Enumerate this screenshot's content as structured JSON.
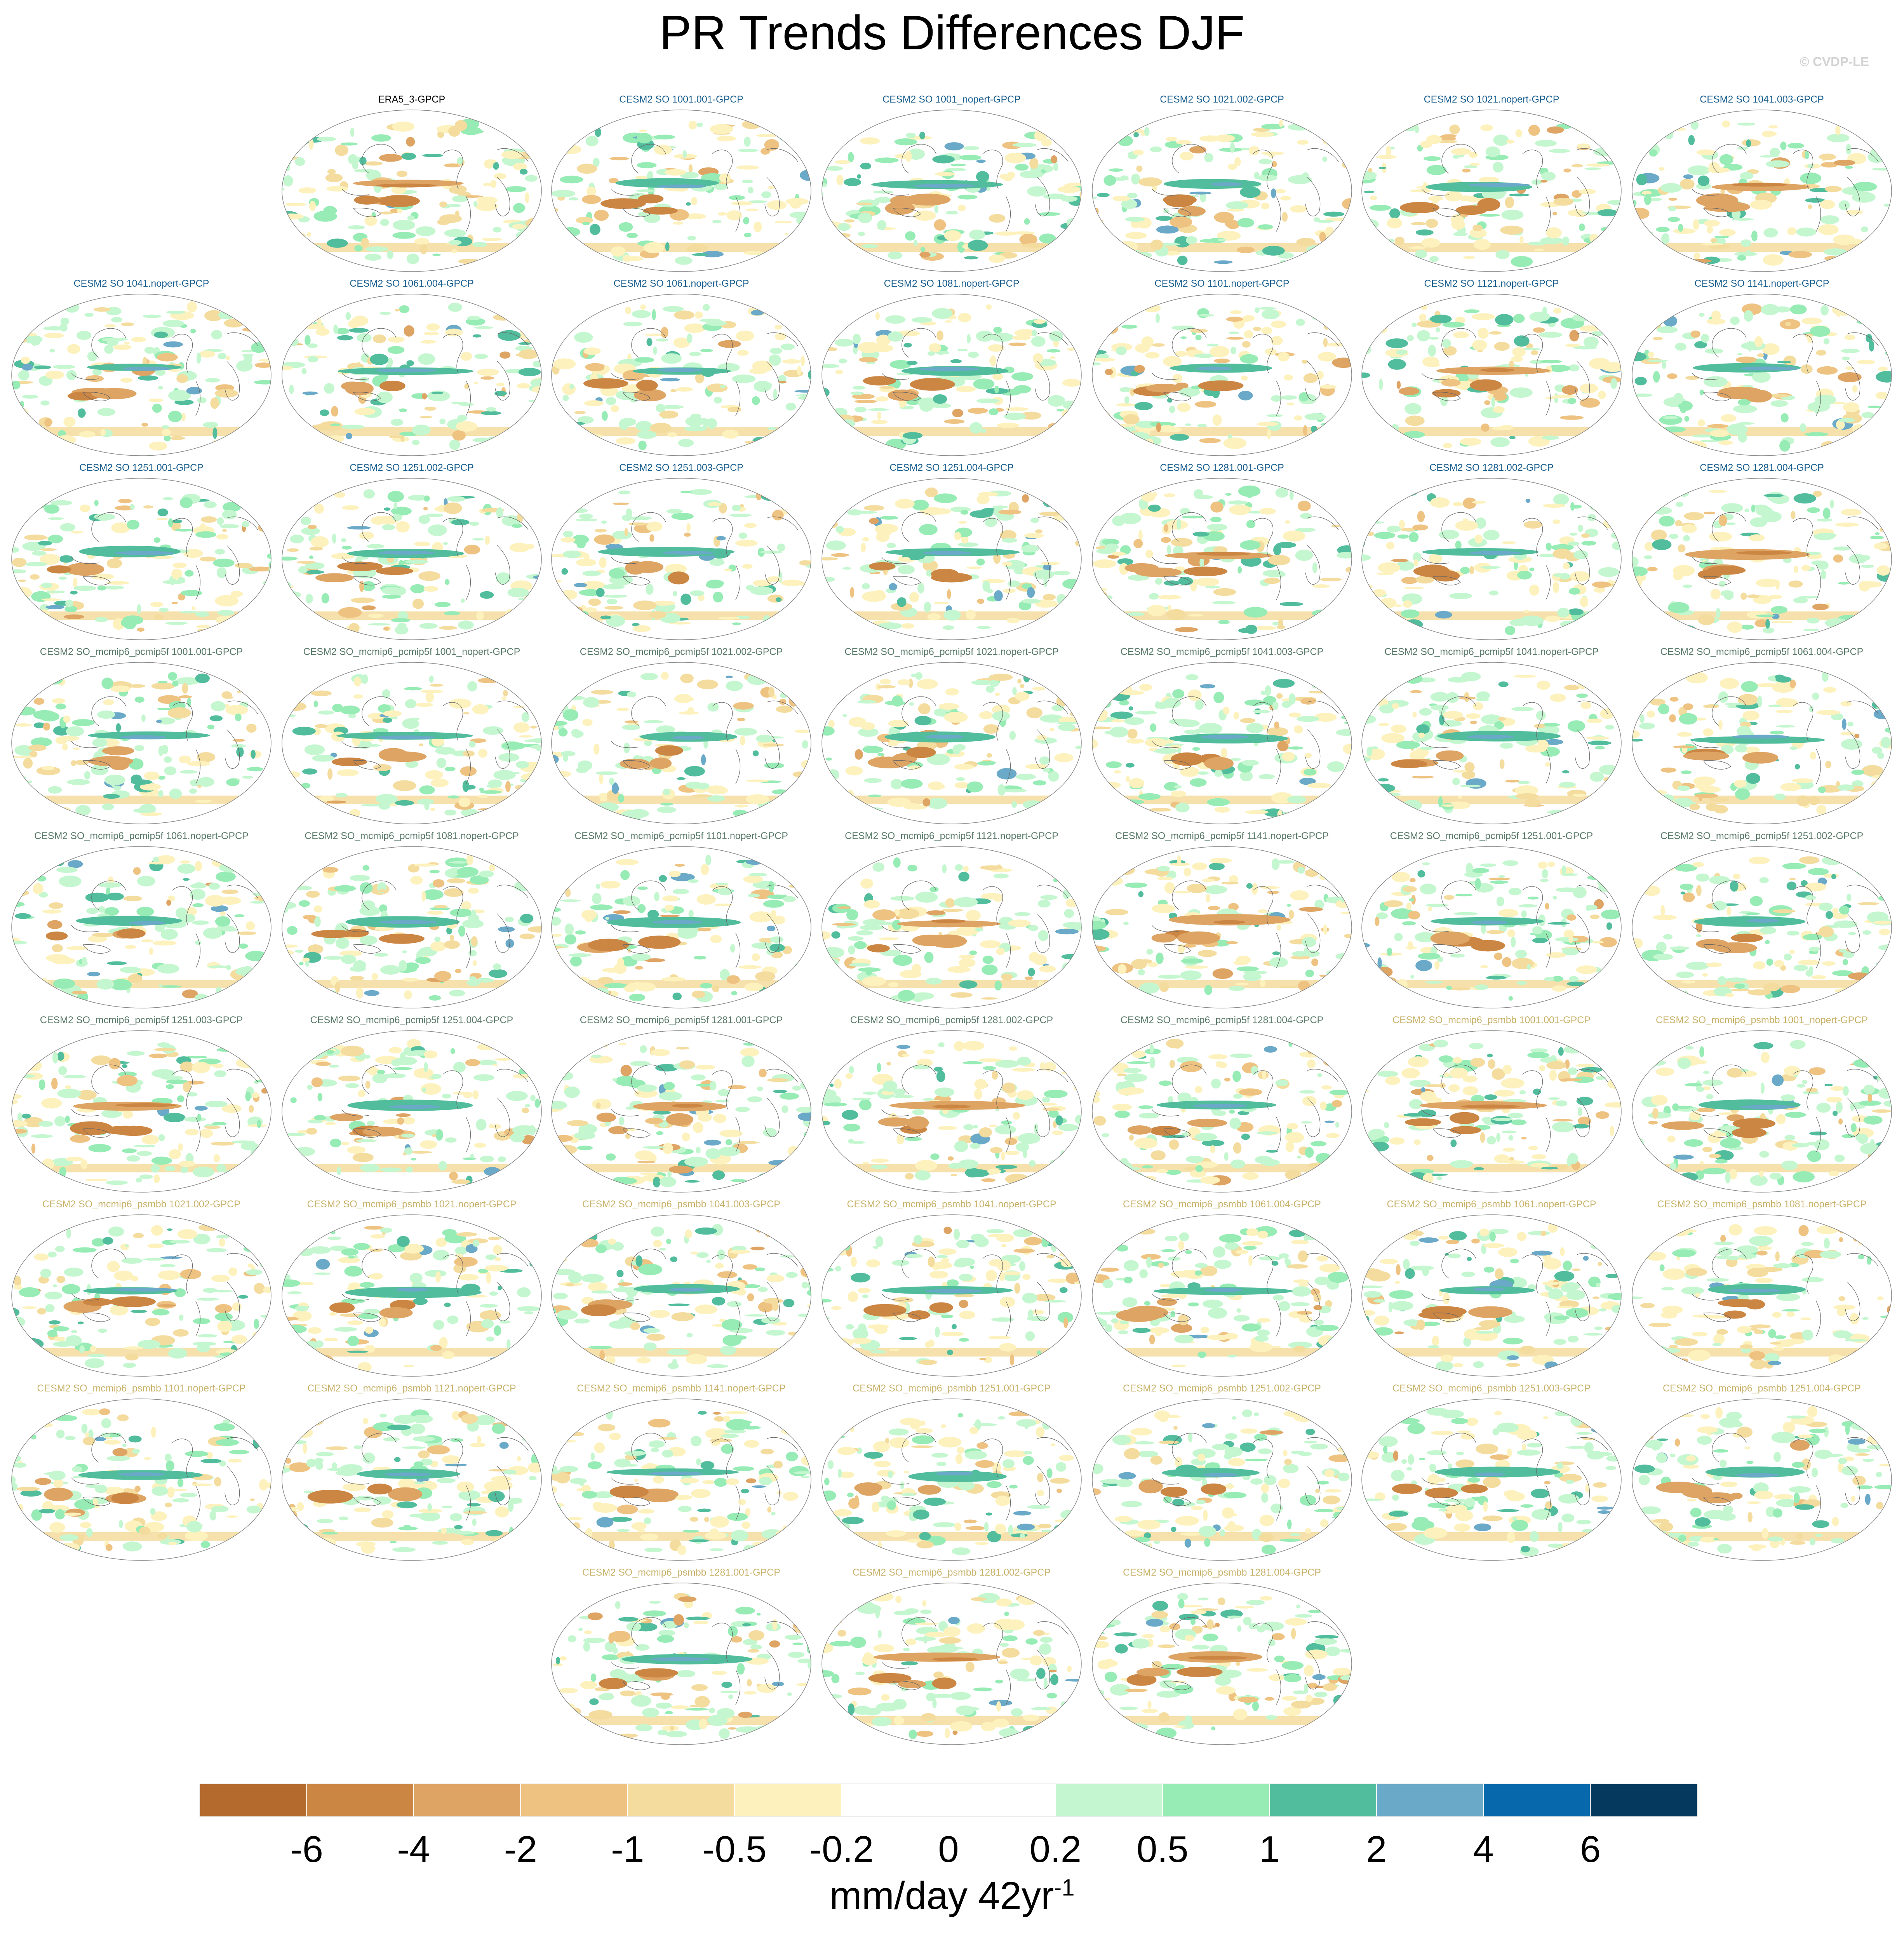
{
  "title": "PR Trends Differences DJF",
  "copyright": "© CVDP-LE",
  "panel_colors": {
    "obs": "#000000",
    "SO": "#1a5f8f",
    "pcmip5f": "#5a7a6a",
    "psmbb": "#c8b26a"
  },
  "panels": [
    {
      "label": "ERA5_3-GPCP",
      "group": "obs"
    },
    {
      "label": "CESM2 SO 1001.001-GPCP",
      "group": "SO"
    },
    {
      "label": "CESM2 SO 1001_nopert-GPCP",
      "group": "SO"
    },
    {
      "label": "CESM2 SO 1021.002-GPCP",
      "group": "SO"
    },
    {
      "label": "CESM2 SO 1021.nopert-GPCP",
      "group": "SO"
    },
    {
      "label": "CESM2 SO 1041.003-GPCP",
      "group": "SO"
    },
    {
      "label": "CESM2 SO 1041.nopert-GPCP",
      "group": "SO"
    },
    {
      "label": "CESM2 SO 1061.004-GPCP",
      "group": "SO"
    },
    {
      "label": "CESM2 SO 1061.nopert-GPCP",
      "group": "SO"
    },
    {
      "label": "CESM2 SO 1081.nopert-GPCP",
      "group": "SO"
    },
    {
      "label": "CESM2 SO 1101.nopert-GPCP",
      "group": "SO"
    },
    {
      "label": "CESM2 SO 1121.nopert-GPCP",
      "group": "SO"
    },
    {
      "label": "CESM2 SO 1141.nopert-GPCP",
      "group": "SO"
    },
    {
      "label": "CESM2 SO 1251.001-GPCP",
      "group": "SO"
    },
    {
      "label": "CESM2 SO 1251.002-GPCP",
      "group": "SO"
    },
    {
      "label": "CESM2 SO 1251.003-GPCP",
      "group": "SO"
    },
    {
      "label": "CESM2 SO 1251.004-GPCP",
      "group": "SO"
    },
    {
      "label": "CESM2 SO 1281.001-GPCP",
      "group": "SO"
    },
    {
      "label": "CESM2 SO 1281.002-GPCP",
      "group": "SO"
    },
    {
      "label": "CESM2 SO 1281.004-GPCP",
      "group": "SO"
    },
    {
      "label": "CESM2 SO_mcmip6_pcmip5f 1001.001-GPCP",
      "group": "pcmip5f"
    },
    {
      "label": "CESM2 SO_mcmip6_pcmip5f 1001_nopert-GPCP",
      "group": "pcmip5f"
    },
    {
      "label": "CESM2 SO_mcmip6_pcmip5f 1021.002-GPCP",
      "group": "pcmip5f"
    },
    {
      "label": "CESM2 SO_mcmip6_pcmip5f 1021.nopert-GPCP",
      "group": "pcmip5f"
    },
    {
      "label": "CESM2 SO_mcmip6_pcmip5f 1041.003-GPCP",
      "group": "pcmip5f"
    },
    {
      "label": "CESM2 SO_mcmip6_pcmip5f 1041.nopert-GPCP",
      "group": "pcmip5f"
    },
    {
      "label": "CESM2 SO_mcmip6_pcmip5f 1061.004-GPCP",
      "group": "pcmip5f"
    },
    {
      "label": "CESM2 SO_mcmip6_pcmip5f 1061.nopert-GPCP",
      "group": "pcmip5f"
    },
    {
      "label": "CESM2 SO_mcmip6_pcmip5f 1081.nopert-GPCP",
      "group": "pcmip5f"
    },
    {
      "label": "CESM2 SO_mcmip6_pcmip5f 1101.nopert-GPCP",
      "group": "pcmip5f"
    },
    {
      "label": "CESM2 SO_mcmip6_pcmip5f 1121.nopert-GPCP",
      "group": "pcmip5f"
    },
    {
      "label": "CESM2 SO_mcmip6_pcmip5f 1141.nopert-GPCP",
      "group": "pcmip5f"
    },
    {
      "label": "CESM2 SO_mcmip6_pcmip5f 1251.001-GPCP",
      "group": "pcmip5f"
    },
    {
      "label": "CESM2 SO_mcmip6_pcmip5f 1251.002-GPCP",
      "group": "pcmip5f"
    },
    {
      "label": "CESM2 SO_mcmip6_pcmip5f 1251.003-GPCP",
      "group": "pcmip5f"
    },
    {
      "label": "CESM2 SO_mcmip6_pcmip5f 1251.004-GPCP",
      "group": "pcmip5f"
    },
    {
      "label": "CESM2 SO_mcmip6_pcmip5f 1281.001-GPCP",
      "group": "pcmip5f"
    },
    {
      "label": "CESM2 SO_mcmip6_pcmip5f 1281.002-GPCP",
      "group": "pcmip5f"
    },
    {
      "label": "CESM2 SO_mcmip6_pcmip5f 1281.004-GPCP",
      "group": "pcmip5f"
    },
    {
      "label": "CESM2 SO_mcmip6_psmbb 1001.001-GPCP",
      "group": "psmbb"
    },
    {
      "label": "CESM2 SO_mcmip6_psmbb 1001_nopert-GPCP",
      "group": "psmbb"
    },
    {
      "label": "CESM2 SO_mcmip6_psmbb 1021.002-GPCP",
      "group": "psmbb"
    },
    {
      "label": "CESM2 SO_mcmip6_psmbb 1021.nopert-GPCP",
      "group": "psmbb"
    },
    {
      "label": "CESM2 SO_mcmip6_psmbb 1041.003-GPCP",
      "group": "psmbb"
    },
    {
      "label": "CESM2 SO_mcmip6_psmbb 1041.nopert-GPCP",
      "group": "psmbb"
    },
    {
      "label": "CESM2 SO_mcmip6_psmbb 1061.004-GPCP",
      "group": "psmbb"
    },
    {
      "label": "CESM2 SO_mcmip6_psmbb 1061.nopert-GPCP",
      "group": "psmbb"
    },
    {
      "label": "CESM2 SO_mcmip6_psmbb 1081.nopert-GPCP",
      "group": "psmbb"
    },
    {
      "label": "CESM2 SO_mcmip6_psmbb 1101.nopert-GPCP",
      "group": "psmbb"
    },
    {
      "label": "CESM2 SO_mcmip6_psmbb 1121.nopert-GPCP",
      "group": "psmbb"
    },
    {
      "label": "CESM2 SO_mcmip6_psmbb 1141.nopert-GPCP",
      "group": "psmbb"
    },
    {
      "label": "CESM2 SO_mcmip6_psmbb 1251.001-GPCP",
      "group": "psmbb"
    },
    {
      "label": "CESM2 SO_mcmip6_psmbb 1251.002-GPCP",
      "group": "psmbb"
    },
    {
      "label": "CESM2 SO_mcmip6_psmbb 1251.003-GPCP",
      "group": "psmbb"
    },
    {
      "label": "CESM2 SO_mcmip6_psmbb 1251.004-GPCP",
      "group": "psmbb"
    },
    {
      "label": "CESM2 SO_mcmip6_psmbb 1281.001-GPCP",
      "group": "psmbb"
    },
    {
      "label": "CESM2 SO_mcmip6_psmbb 1281.002-GPCP",
      "group": "psmbb"
    },
    {
      "label": "CESM2 SO_mcmip6_psmbb 1281.004-GPCP",
      "group": "psmbb"
    }
  ],
  "chart_data": {
    "type": "heatmap",
    "title": "PR Trends Differences DJF",
    "projection": "robinson",
    "colorbar": {
      "labels": [
        "-6",
        "-4",
        "-2",
        "-1",
        "-0.5",
        "-0.2",
        "0",
        "0.2",
        "0.5",
        "1",
        "2",
        "4",
        "6"
      ],
      "colors": [
        "#b46a2c",
        "#cc8643",
        "#dea464",
        "#eec281",
        "#f4dc9e",
        "#fdf2bd",
        "#ffffff",
        "#ffffff",
        "#c4f7cf",
        "#96ecb4",
        "#52bd9c",
        "#6aa9c8",
        "#0868ac",
        "#053a5e"
      ],
      "units_base": "mm/day 42yr",
      "units_exponent": "-1"
    }
  }
}
